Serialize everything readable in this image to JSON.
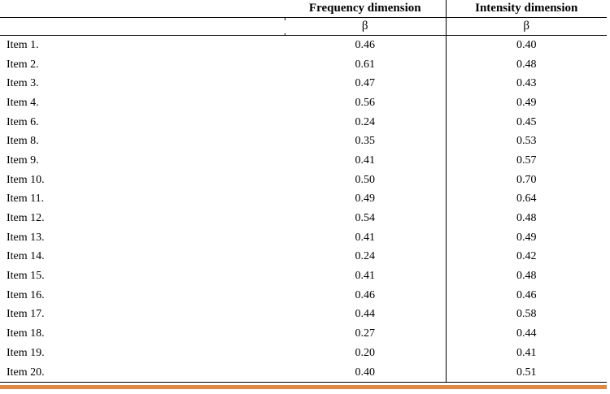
{
  "table": {
    "header": {
      "frequency": "Frequency dimension",
      "intensity": "Intensity dimension",
      "beta": "β"
    },
    "rows": [
      {
        "item": "Item 1.",
        "frequency": "0.46",
        "intensity": "0.40"
      },
      {
        "item": "Item 2.",
        "frequency": "0.61",
        "intensity": "0.48"
      },
      {
        "item": "Item 3.",
        "frequency": "0.47",
        "intensity": "0.43"
      },
      {
        "item": "Item 4.",
        "frequency": "0.56",
        "intensity": "0.49"
      },
      {
        "item": "Item 6.",
        "frequency": "0.24",
        "intensity": "0.45"
      },
      {
        "item": "Item 8.",
        "frequency": "0.35",
        "intensity": "0.53"
      },
      {
        "item": "Item 9.",
        "frequency": "0.41",
        "intensity": "0.57"
      },
      {
        "item": "Item 10.",
        "frequency": "0.50",
        "intensity": "0.70"
      },
      {
        "item": "Item 11.",
        "frequency": "0.49",
        "intensity": "0.64"
      },
      {
        "item": "Item 12.",
        "frequency": "0.54",
        "intensity": "0.48"
      },
      {
        "item": "Item 13.",
        "frequency": "0.41",
        "intensity": "0.49"
      },
      {
        "item": "Item 14.",
        "frequency": "0.24",
        "intensity": "0.42"
      },
      {
        "item": "Item 15.",
        "frequency": "0.41",
        "intensity": "0.48"
      },
      {
        "item": "Item 16.",
        "frequency": "0.46",
        "intensity": "0.46"
      },
      {
        "item": "Item 17.",
        "frequency": "0.44",
        "intensity": "0.58"
      },
      {
        "item": "Item 18.",
        "frequency": "0.27",
        "intensity": "0.44"
      },
      {
        "item": "Item 19.",
        "frequency": "0.20",
        "intensity": "0.41"
      },
      {
        "item": "Item 20.",
        "frequency": "0.40",
        "intensity": "0.51"
      }
    ]
  },
  "colors": {
    "accent_bar": "#DE8944",
    "border": "#000000",
    "text": "#000000"
  }
}
